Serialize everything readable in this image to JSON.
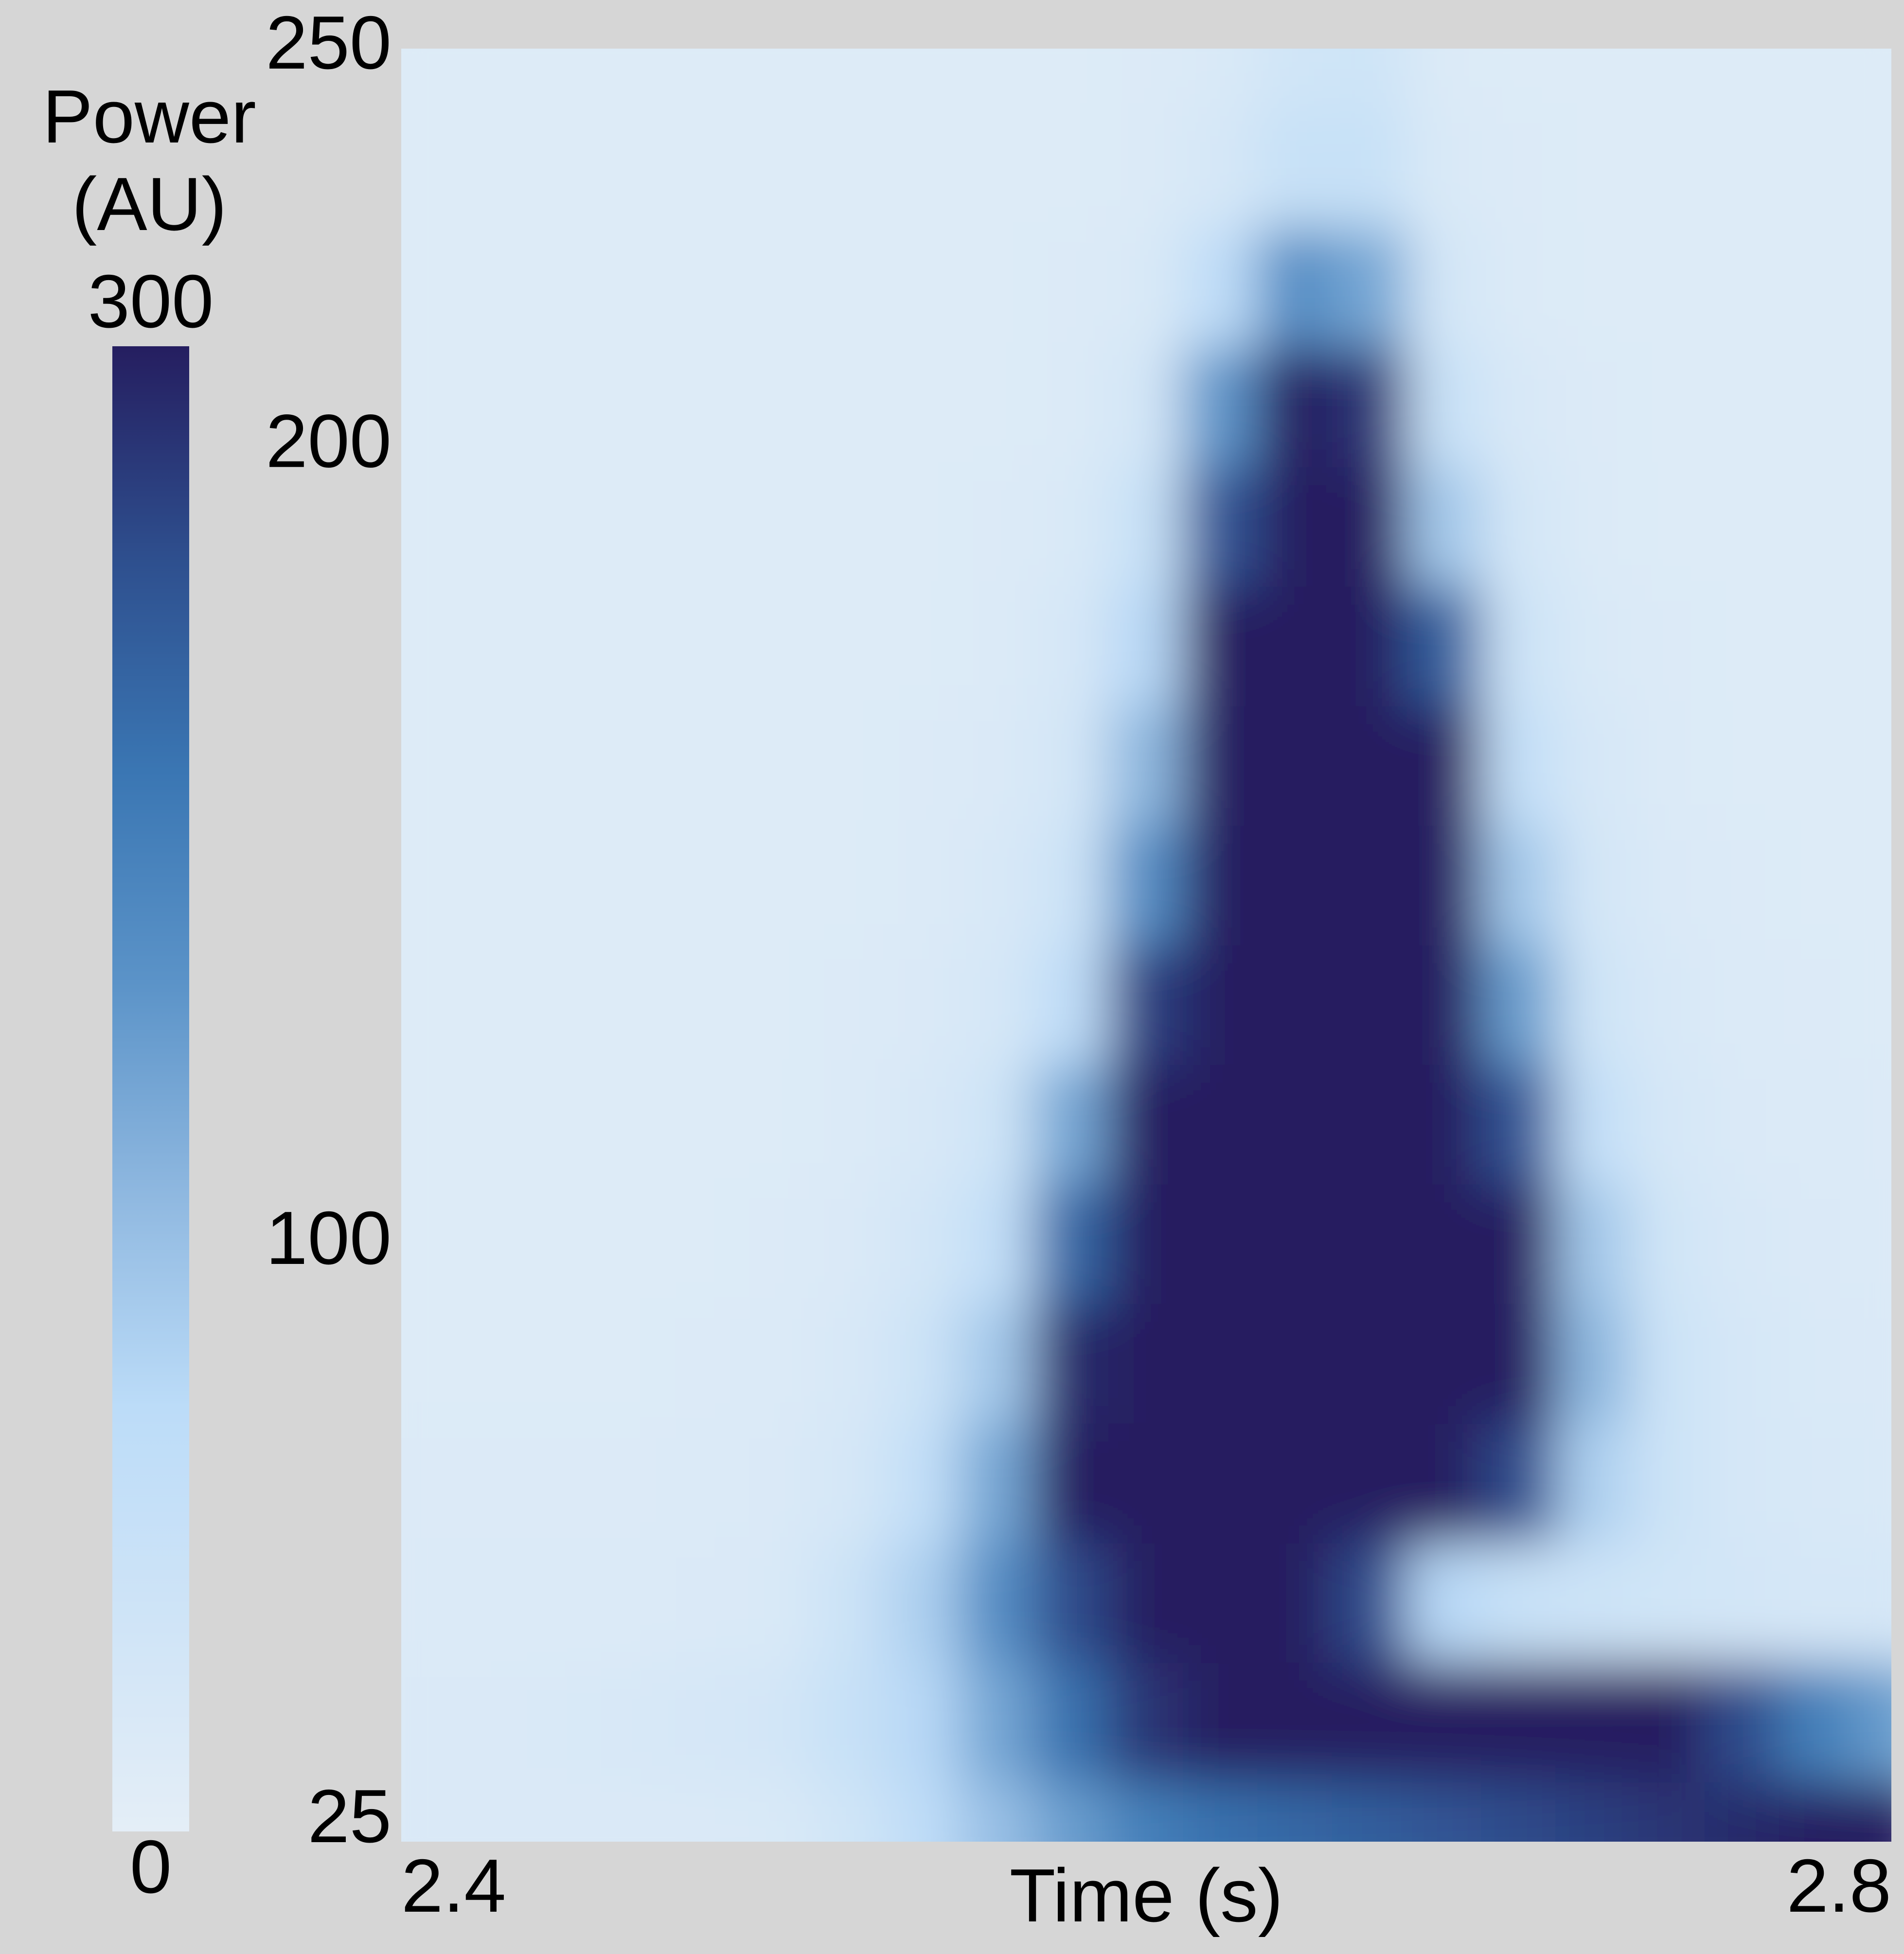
{
  "chart_data": {
    "type": "heatmap",
    "x_label": "Time (s)",
    "colorbar_label": [
      "Power",
      "(AU)"
    ],
    "x": [
      2.4,
      2.42,
      2.44,
      2.46,
      2.48,
      2.5,
      2.52,
      2.54,
      2.56,
      2.58,
      2.6,
      2.62,
      2.64,
      2.66,
      2.68,
      2.7,
      2.72,
      2.74,
      2.76,
      2.78,
      2.8
    ],
    "y": [
      25,
      40,
      55,
      70,
      85,
      100,
      115,
      130,
      145,
      160,
      175,
      190,
      205,
      220,
      235,
      250
    ],
    "z": [
      [
        20,
        20,
        20,
        20,
        20,
        22,
        40,
        80,
        120,
        160,
        200,
        220,
        230,
        240,
        250,
        260,
        270,
        280,
        290,
        300,
        300
      ],
      [
        20,
        20,
        22,
        25,
        28,
        35,
        60,
        90,
        150,
        220,
        280,
        300,
        300,
        300,
        300,
        300,
        300,
        300,
        260,
        200,
        160
      ],
      [
        18,
        18,
        18,
        18,
        20,
        22,
        50,
        100,
        180,
        260,
        300,
        300,
        300,
        260,
        90,
        60,
        50,
        40,
        35,
        30,
        30
      ],
      [
        16,
        16,
        16,
        16,
        18,
        20,
        30,
        70,
        150,
        300,
        300,
        300,
        300,
        300,
        300,
        260,
        100,
        50,
        30,
        25,
        22
      ],
      [
        15,
        15,
        15,
        15,
        16,
        18,
        25,
        50,
        110,
        290,
        300,
        300,
        300,
        300,
        300,
        300,
        130,
        50,
        30,
        22,
        20
      ],
      [
        15,
        15,
        15,
        15,
        15,
        16,
        20,
        35,
        70,
        230,
        300,
        300,
        300,
        300,
        300,
        300,
        110,
        40,
        25,
        20,
        18
      ],
      [
        15,
        15,
        15,
        15,
        15,
        15,
        18,
        25,
        45,
        150,
        300,
        300,
        300,
        300,
        300,
        250,
        70,
        30,
        20,
        18,
        16
      ],
      [
        15,
        15,
        15,
        15,
        15,
        15,
        16,
        20,
        30,
        80,
        270,
        300,
        300,
        300,
        300,
        160,
        45,
        25,
        18,
        16,
        15
      ],
      [
        15,
        15,
        15,
        15,
        15,
        15,
        15,
        18,
        25,
        50,
        180,
        300,
        300,
        300,
        300,
        110,
        35,
        20,
        16,
        15,
        15
      ],
      [
        15,
        15,
        15,
        15,
        15,
        15,
        15,
        16,
        20,
        35,
        130,
        300,
        300,
        300,
        300,
        70,
        28,
        18,
        15,
        15,
        15
      ],
      [
        15,
        15,
        15,
        15,
        15,
        15,
        15,
        15,
        18,
        28,
        90,
        300,
        300,
        300,
        240,
        50,
        22,
        16,
        15,
        15,
        15
      ],
      [
        15,
        15,
        15,
        15,
        15,
        15,
        15,
        15,
        16,
        22,
        60,
        250,
        300,
        300,
        110,
        35,
        18,
        15,
        15,
        15,
        15
      ],
      [
        15,
        15,
        15,
        15,
        15,
        15,
        15,
        15,
        15,
        18,
        35,
        170,
        300,
        280,
        60,
        25,
        16,
        15,
        15,
        15,
        15
      ],
      [
        15,
        15,
        15,
        15,
        15,
        15,
        15,
        15,
        15,
        16,
        22,
        80,
        180,
        150,
        35,
        18,
        15,
        15,
        15,
        15,
        15
      ],
      [
        15,
        15,
        15,
        15,
        15,
        15,
        15,
        15,
        15,
        15,
        18,
        30,
        60,
        60,
        22,
        16,
        15,
        15,
        15,
        15,
        15
      ],
      [
        15,
        15,
        15,
        15,
        15,
        15,
        15,
        15,
        15,
        15,
        16,
        22,
        40,
        45,
        18,
        15,
        15,
        15,
        15,
        15,
        15
      ]
    ],
    "xlim": [
      2.4,
      2.8
    ],
    "xticks": [
      2.4,
      2.8
    ],
    "ylim": [
      25,
      250
    ],
    "yticks": [
      25,
      100,
      200,
      250
    ],
    "clim": [
      0,
      300
    ],
    "cticks": [
      0,
      300
    ],
    "colorscale": [
      "#e4eef7",
      "#cfe4f7",
      "#bcdcf8",
      "#8fb8e0",
      "#5b93c8",
      "#3a76b3",
      "#2e4f8e",
      "#251e60"
    ]
  }
}
